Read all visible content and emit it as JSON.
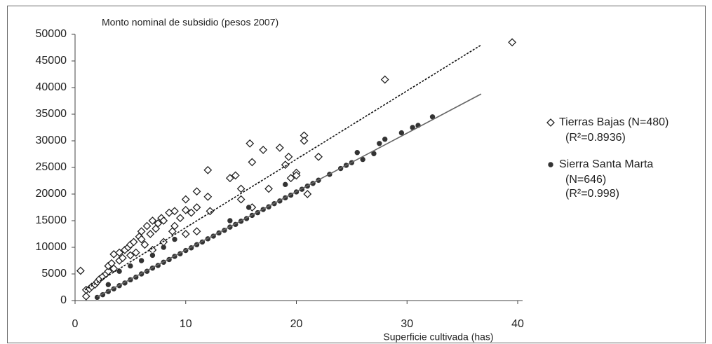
{
  "chart_data": {
    "type": "scatter",
    "title": "Monto nominal de subsidio (pesos 2007)",
    "x_label": "Superficie cultivada (has)",
    "xlim": [
      0,
      40
    ],
    "xticks": [
      0,
      10,
      20,
      30,
      40
    ],
    "ylim": [
      0,
      50000
    ],
    "yticks": [
      0,
      5000,
      10000,
      15000,
      20000,
      25000,
      30000,
      35000,
      40000,
      45000,
      50000
    ],
    "series": [
      {
        "name": "Tierras Bajas (N=480)",
        "legend_notes": [
          "(R²=0.8936)"
        ],
        "marker": "diamond",
        "color": "#222222",
        "x": [
          0.5,
          1,
          1,
          1.3,
          1.5,
          1.8,
          2,
          2.2,
          2.5,
          2.8,
          3,
          3,
          3.3,
          3.5,
          3.5,
          4,
          4,
          4.3,
          4.5,
          4.8,
          5,
          5,
          5.3,
          5.5,
          5.8,
          6,
          6,
          6.3,
          6.5,
          6.8,
          7,
          7,
          7.3,
          7.5,
          7.8,
          8,
          8,
          8.5,
          8.8,
          9,
          9,
          9.5,
          10,
          10,
          10,
          10.5,
          11,
          11,
          11,
          12,
          12,
          12.2,
          14,
          14.5,
          15,
          15,
          15.8,
          16,
          16,
          17,
          17.5,
          18.5,
          19,
          19.3,
          19.5,
          20,
          20,
          20.7,
          20.7,
          21,
          22,
          28,
          39.5
        ],
        "values": [
          5600,
          800,
          2000,
          2200,
          2600,
          3000,
          3500,
          4000,
          4500,
          5000,
          5500,
          6500,
          7000,
          8700,
          6000,
          7500,
          9000,
          8000,
          9500,
          10000,
          10500,
          8500,
          11000,
          9000,
          12000,
          11500,
          13000,
          10500,
          14000,
          12500,
          15000,
          9500,
          13500,
          14500,
          15500,
          11000,
          15000,
          16500,
          13000,
          14000,
          16800,
          15500,
          19000,
          17000,
          12500,
          16500,
          20500,
          17500,
          13000,
          24500,
          19500,
          16800,
          23000,
          23500,
          21000,
          19000,
          29500,
          26000,
          17500,
          28300,
          21000,
          28700,
          25500,
          27000,
          23000,
          24000,
          23500,
          31000,
          30000,
          20000,
          27000,
          41500,
          48500
        ],
        "trendline": {
          "style": "dashed",
          "x": [
            0.9,
            36.7
          ],
          "values": [
            2000,
            48000
          ]
        }
      },
      {
        "name": "Sierra Santa Marta",
        "legend_notes": [
          "(N=646)",
          "(R²=0.998)"
        ],
        "marker": "circle",
        "color": "#333333",
        "x": [
          2,
          2.5,
          3,
          3.5,
          4,
          4.5,
          5,
          5.5,
          6,
          6.5,
          7,
          7.5,
          8,
          8.5,
          9,
          9.5,
          10,
          10.5,
          11,
          11.5,
          12,
          12.5,
          13,
          13.5,
          14,
          14.5,
          15,
          15.5,
          16,
          16.5,
          17,
          17.5,
          18,
          18.5,
          19,
          19.5,
          20,
          20.5,
          21,
          21.5,
          22,
          23,
          24,
          24.5,
          25,
          25.5,
          26,
          27,
          27.5,
          28,
          29.5,
          30.5,
          31,
          32.3,
          3,
          4,
          5,
          6,
          7,
          8,
          9,
          15.7,
          19,
          14
        ],
        "values": [
          600,
          1100,
          1700,
          2200,
          2800,
          3300,
          3900,
          4400,
          5000,
          5500,
          6100,
          6600,
          7200,
          7700,
          8300,
          8800,
          9400,
          9900,
          10500,
          11000,
          11600,
          12100,
          12700,
          13200,
          13800,
          14300,
          14900,
          15400,
          16000,
          16500,
          17100,
          17600,
          18200,
          18700,
          19300,
          19800,
          20400,
          20900,
          21500,
          22000,
          22600,
          23700,
          24800,
          25400,
          25900,
          27800,
          26500,
          27600,
          29500,
          30300,
          31500,
          32500,
          32900,
          34500,
          3000,
          5500,
          6500,
          7500,
          8500,
          10000,
          11500,
          17500,
          21800,
          15000
        ],
        "trendline": {
          "style": "solid",
          "x": [
            2,
            36.7
          ],
          "values": [
            700,
            38800
          ]
        }
      }
    ]
  }
}
